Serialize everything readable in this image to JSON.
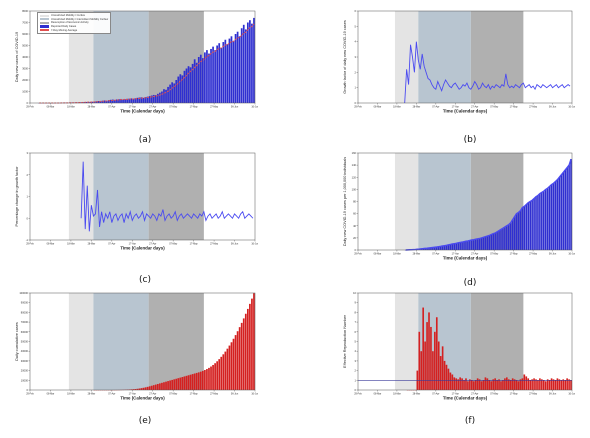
{
  "colors": {
    "phase1": "#e4e4e4",
    "phase2": "#b8c5d0",
    "phase3": "#b0b0b0",
    "bar_blue": "#2f2fd0",
    "line_blue": "#4b4bf0",
    "bar_red": "#d42020",
    "moving_avg": "#e05050"
  },
  "shared": {
    "xlabel": "Time (Calendar days)",
    "x_ticks": [
      "29-Feb",
      "08-Mar",
      "18-Mar",
      "28-Mar",
      "07-Apr",
      "17-Apr",
      "27-Apr",
      "07-May",
      "17-May",
      "27-May",
      "06-Jun",
      "16-Jun"
    ],
    "phase_bands": [
      {
        "name": "Unrestricted Mobility / Curfew",
        "start": 19,
        "end": 31
      },
      {
        "name": "Unrestricted Mobility / Intermittent Mobility Curfew",
        "start": 31,
        "end": 58
      },
      {
        "name": "Resumption of Economic Activity",
        "start": 58,
        "end": 85
      }
    ]
  },
  "chart_data": [
    {
      "id": "a",
      "type": "bar",
      "caption": "(a)",
      "ylabel": "Daily new cases of COVID-19",
      "ylim": [
        0,
        8000
      ],
      "y_ticks": [
        "0",
        "1000",
        "2000",
        "3000",
        "4000",
        "5000",
        "6000",
        "7000",
        "8000"
      ],
      "legend": [
        {
          "label": "Unrestricted Mobility / Curfew",
          "color": "#e4e4e4"
        },
        {
          "label": "Unrestricted Mobility / Intermittent Mobility Curfew",
          "color": "#b8c5d0"
        },
        {
          "label": "Resumption of Economic Activity",
          "color": "#b0b0b0"
        },
        {
          "label": "Reported Daily Cases",
          "color": "#2f2fd0"
        },
        {
          "label": "7-Day Moving Average",
          "color": "#e05050"
        }
      ],
      "values": [
        0,
        0,
        0,
        0,
        3,
        0,
        0,
        2,
        5,
        8,
        12,
        15,
        18,
        22,
        20,
        30,
        35,
        40,
        50,
        45,
        60,
        70,
        80,
        90,
        100,
        95,
        110,
        130,
        150,
        170,
        180,
        200,
        220,
        190,
        250,
        280,
        300,
        260,
        310,
        330,
        350,
        300,
        320,
        360,
        380,
        400,
        350,
        420,
        450,
        480,
        500,
        450,
        520,
        550,
        600,
        650,
        700,
        680,
        800,
        900,
        1000,
        1200,
        1150,
        1400,
        1600,
        1800,
        1700,
        2000,
        2300,
        2500,
        2400,
        2800,
        3000,
        3200,
        3100,
        3400,
        3800,
        3500,
        4000,
        4200,
        3900,
        4400,
        4600,
        4300,
        4700,
        4900,
        4600,
        5000,
        5200,
        4800,
        5300,
        5500,
        5100,
        5600,
        5800,
        5400,
        6000,
        6200,
        5800,
        6500,
        6800,
        6400,
        7000,
        7200,
        6900,
        7400
      ]
    },
    {
      "id": "b",
      "type": "line",
      "caption": "(b)",
      "ylabel": "Growth factor of daily new COVID-19 cases",
      "ylim": [
        0,
        6
      ],
      "y_ticks": [
        "0",
        "1",
        "2",
        "3",
        "4",
        "5",
        "6"
      ],
      "values": [
        0,
        2.2,
        1.2,
        3.8,
        3.0,
        2.0,
        4.0,
        2.8,
        2.2,
        3.2,
        2.4,
        2.0,
        1.6,
        1.5,
        1.2,
        1.0,
        0.9,
        1.4,
        1.1,
        0.8,
        1.2,
        1.5,
        1.3,
        1.1,
        1.0,
        1.2,
        1.3,
        1.1,
        0.9,
        1.0,
        1.2,
        1.1,
        1.3,
        1.0,
        0.9,
        1.1,
        1.4,
        1.2,
        0.9,
        1.0,
        1.3,
        1.1,
        1.0,
        1.2,
        0.9,
        1.1,
        1.0,
        1.2,
        1.1,
        1.0,
        1.2,
        1.1,
        1.9,
        1.2,
        1.0,
        1.1,
        1.0,
        1.2,
        1.1,
        1.0,
        1.2,
        1.3,
        1.0,
        1.1,
        1.2,
        1.0,
        1.1,
        0.9,
        1.2,
        1.1,
        1.0,
        1.2,
        1.1,
        1.0,
        1.1,
        1.2,
        1.0,
        1.1,
        1.2,
        1.0,
        1.1,
        1.2,
        1.0,
        1.1,
        1.2,
        1.1
      ]
    },
    {
      "id": "c",
      "type": "line",
      "caption": "(c)",
      "ylabel": "Percentage change in growth factor",
      "ylim": [
        -1,
        3
      ],
      "y_ticks": [
        "-1",
        "0",
        "1",
        "2",
        "3"
      ],
      "values": [
        0,
        2.6,
        -0.5,
        1.5,
        -0.6,
        0.6,
        0.1,
        0.2,
        1.3,
        -0.4,
        0.3,
        -0.2,
        0.2,
        0.0,
        0.3,
        -0.2,
        0.1,
        0.2,
        -0.1,
        0.1,
        0.2,
        -0.2,
        0.2,
        0.0,
        0.3,
        -0.1,
        0.1,
        0.2,
        0.0,
        0.1,
        0.3,
        -0.1,
        0.2,
        0.1,
        0.0,
        0.2,
        0.1,
        -0.1,
        0.2,
        0.1,
        0.4,
        -0.1,
        0.1,
        0.2,
        0.0,
        0.1,
        0.3,
        -0.1,
        0.1,
        0.2,
        0.0,
        0.1,
        0.2,
        0.1,
        0.0,
        0.2,
        0.1,
        0.0,
        0.2,
        0.1,
        0.3,
        -0.1,
        0.1,
        0.2,
        0.0,
        0.1,
        0.2,
        0.0,
        0.1,
        0.3,
        0.0,
        0.1,
        0.2,
        0.1,
        0.0,
        0.2,
        0.1,
        0.0,
        0.2,
        0.3,
        0.0,
        0.1,
        0.2,
        0.1,
        0.0
      ]
    },
    {
      "id": "d",
      "type": "bar",
      "caption": "(d)",
      "ylabel": "Daily new COVID-19 cases per 1,000,000 individuals",
      "ylim": [
        0,
        160
      ],
      "y_ticks": [
        "0",
        "20",
        "40",
        "60",
        "80",
        "100",
        "120",
        "140",
        "160"
      ],
      "values": [
        0,
        0.2,
        0.4,
        0.6,
        0.8,
        1.0,
        1.3,
        1.6,
        2.0,
        2.3,
        2.7,
        3.0,
        3.4,
        3.8,
        4.2,
        4.6,
        5.0,
        5.5,
        6.0,
        6.6,
        7.2,
        7.8,
        8.5,
        9.2,
        10,
        10.5,
        11,
        11.8,
        12.5,
        13,
        13.8,
        14.5,
        15,
        15.8,
        16.5,
        17,
        17.8,
        18.5,
        19,
        20,
        21,
        22,
        23,
        24,
        25.5,
        27,
        28,
        30,
        32,
        34,
        36,
        38,
        40,
        42,
        45,
        50,
        55,
        60,
        62,
        65,
        70,
        72,
        75,
        78,
        80,
        82,
        85,
        88,
        90,
        93,
        95,
        97,
        100,
        102,
        105,
        108,
        110,
        113,
        116,
        120,
        124,
        128,
        132,
        136,
        140,
        150
      ]
    },
    {
      "id": "e",
      "type": "bar",
      "caption": "(e)",
      "ylabel": "Daily cumulative cases",
      "ylim": [
        0,
        100000
      ],
      "y_ticks": [
        "0",
        "10000",
        "20000",
        "30000",
        "40000",
        "50000",
        "60000",
        "70000",
        "80000",
        "90000",
        "100000"
      ],
      "values": [
        0,
        0,
        0,
        0,
        0,
        0,
        0,
        0,
        0,
        10,
        30,
        60,
        100,
        150,
        220,
        300,
        400,
        520,
        660,
        820,
        1000,
        1250,
        1550,
        1900,
        2300,
        2750,
        3250,
        3800,
        4400,
        5000,
        5600,
        6200,
        6800,
        7400,
        8000,
        8600,
        9200,
        9800,
        10400,
        11000,
        11600,
        12200,
        12800,
        13400,
        14000,
        14600,
        15200,
        15800,
        16400,
        17000,
        17600,
        18200,
        18900,
        19700,
        20600,
        21600,
        22800,
        24200,
        25800,
        27600,
        29600,
        31800,
        34200,
        36800,
        39600,
        42600,
        45800,
        49200,
        52800,
        56600,
        60600,
        64800,
        69200,
        73800,
        78600,
        83600,
        88800,
        94200,
        99800
      ]
    },
    {
      "id": "f",
      "type": "bar",
      "caption": "(f)",
      "ylabel": "Effective Reproduction Number",
      "ylim": [
        0,
        10
      ],
      "y_ticks": [
        "0",
        "1",
        "2",
        "3",
        "4",
        "5",
        "6",
        "7",
        "8",
        "9",
        "10"
      ],
      "reference_line": 1,
      "values": [
        0,
        0,
        0,
        0,
        0,
        2.0,
        6.0,
        4.0,
        8.5,
        5.0,
        7.0,
        8.0,
        6.5,
        4.0,
        6.0,
        7.5,
        5.0,
        3.5,
        4.5,
        3.0,
        2.6,
        2.2,
        1.8,
        1.6,
        1.3,
        1.2,
        1.1,
        1.3,
        1.2,
        1.0,
        1.2,
        0.9,
        1.1,
        1.0,
        0.9,
        1.0,
        1.2,
        1.1,
        0.9,
        1.0,
        1.3,
        1.2,
        1.0,
        0.9,
        1.1,
        1.2,
        1.0,
        1.1,
        0.9,
        1.0,
        1.2,
        1.3,
        1.1,
        1.0,
        1.2,
        1.1,
        1.0,
        0.9,
        1.1,
        1.2,
        1.6,
        1.4,
        1.2,
        1.0,
        1.1,
        1.2,
        1.1,
        1.0,
        1.2,
        1.1,
        1.0,
        0.9,
        1.1,
        1.0,
        1.2,
        1.1,
        1.0,
        1.2,
        1.1,
        1.0,
        1.1,
        1.0,
        1.2,
        1.1,
        1.0
      ]
    }
  ]
}
